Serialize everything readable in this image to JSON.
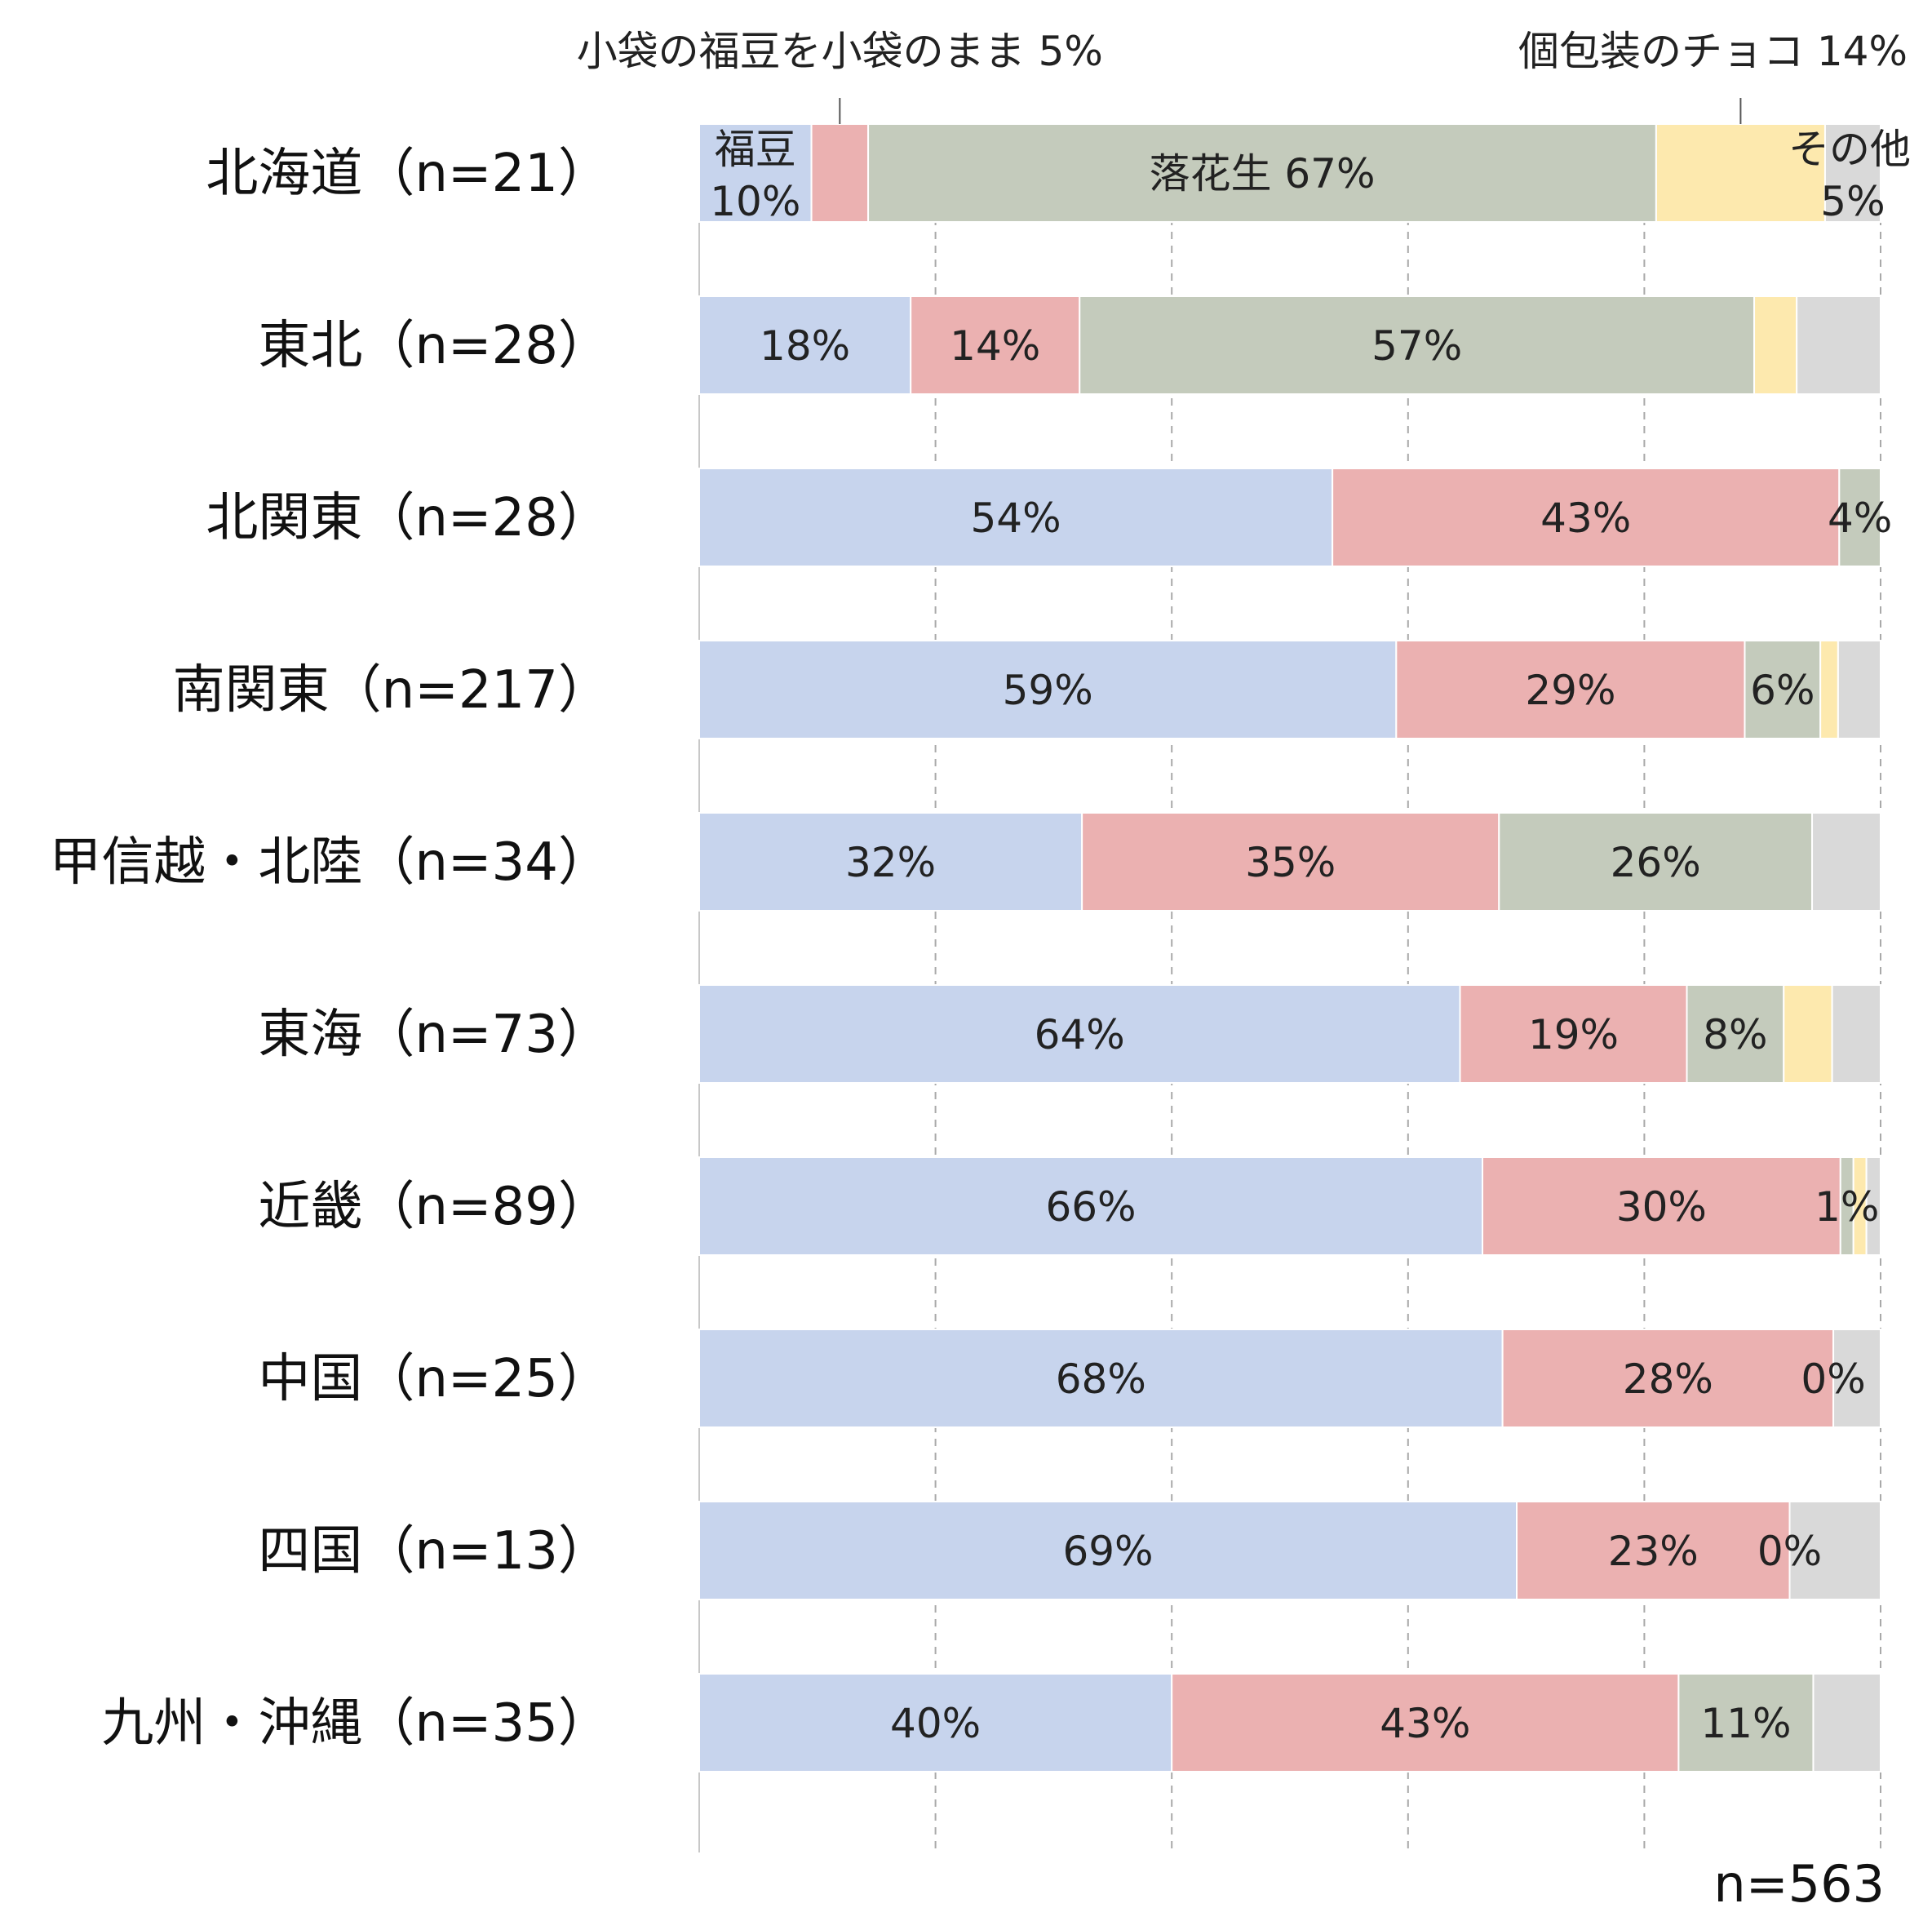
{
  "chart_data": {
    "type": "bar",
    "orientation": "horizontal-stacked",
    "categories": [
      "北海道（n=21）",
      "東北（n=28）",
      "北関東（n=28）",
      "南関東（n=217）",
      "甲信越・北陸（n=34）",
      "東海（n=73）",
      "近畿（n=89）",
      "中国（n=25）",
      "四国（n=13）",
      "九州・沖縄（n=35）"
    ],
    "series": [
      {
        "name": "福豆",
        "color": "#c7d4ed",
        "values": [
          9.5,
          17.9,
          53.6,
          59.0,
          32.4,
          64.4,
          66.3,
          68.0,
          69.2,
          40.0
        ]
      },
      {
        "name": "小袋の福豆を小袋のまま",
        "color": "#ebb1b1",
        "values": [
          4.8,
          14.3,
          42.9,
          29.5,
          35.3,
          19.2,
          30.3,
          28.0,
          23.1,
          42.9
        ]
      },
      {
        "name": "落花生",
        "color": "#c4cbbc",
        "values": [
          66.7,
          57.1,
          3.5,
          6.4,
          26.5,
          8.2,
          1.1,
          0.0,
          0.0,
          11.4
        ]
      },
      {
        "name": "個包装のチョコ",
        "color": "#fde9ae",
        "values": [
          14.3,
          3.6,
          0.0,
          1.5,
          0.0,
          4.1,
          1.1,
          0.0,
          0.0,
          0.0
        ]
      },
      {
        "name": "その他",
        "color": "#d9d9d9",
        "values": [
          4.7,
          7.1,
          0.0,
          3.6,
          5.8,
          4.1,
          1.2,
          4.0,
          7.7,
          5.7
        ]
      }
    ],
    "segment_labels": [
      [
        null,
        null,
        "落花生 67%",
        null,
        null
      ],
      [
        "18%",
        "14%",
        "57%",
        null,
        null
      ],
      [
        "54%",
        "43%",
        "4%",
        null,
        null
      ],
      [
        "59%",
        "29%",
        "6%",
        null,
        null
      ],
      [
        "32%",
        "35%",
        "26%",
        null,
        null
      ],
      [
        "64%",
        "19%",
        "8%",
        null,
        null
      ],
      [
        "66%",
        "30%",
        "1%",
        null,
        null
      ],
      [
        "68%",
        "28%",
        "0%",
        null,
        null
      ],
      [
        "69%",
        "23%",
        "0%",
        null,
        null
      ],
      [
        "40%",
        "43%",
        "11%",
        null,
        null
      ]
    ],
    "first_row_labels": {
      "fukumame_name": "福豆",
      "fukumame_value": "10%",
      "other_name": "その他",
      "other_value": "5%"
    },
    "callouts": [
      {
        "text": "小袋の福豆を小袋のまま 5%",
        "series_index": 1
      },
      {
        "text": "個包装のチョコ 14%",
        "series_index": 3
      }
    ],
    "xlim": [
      0,
      100
    ],
    "x_gridlines": [
      20,
      40,
      60,
      80,
      100
    ],
    "grid": "vertical-dashed",
    "legend": "none",
    "total_n": "n=563"
  }
}
